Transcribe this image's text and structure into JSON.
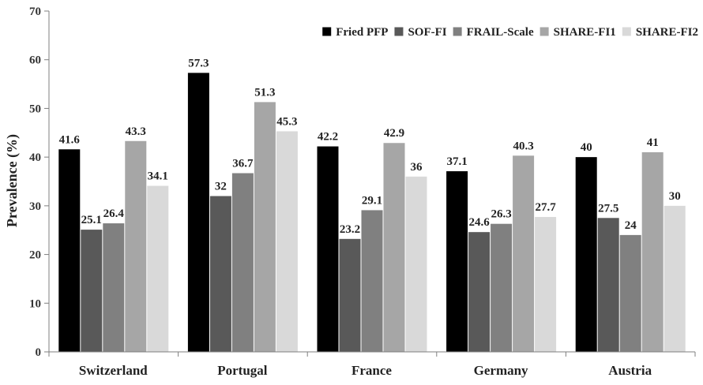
{
  "chart_data": {
    "type": "bar",
    "title": "",
    "xlabel": "",
    "ylabel": "Prevalence (%)",
    "ylim": [
      0,
      70
    ],
    "yticks": [
      0,
      10,
      20,
      30,
      40,
      50,
      60,
      70
    ],
    "grid": false,
    "legend_position": "top-right",
    "categories": [
      "Switzerland",
      "Portugal",
      "France",
      "Germany",
      "Austria"
    ],
    "series": [
      {
        "name": "Fried PFP",
        "color": "#000000",
        "values": [
          41.6,
          57.3,
          42.2,
          37.1,
          40
        ]
      },
      {
        "name": "SOF-FI",
        "color": "#595959",
        "values": [
          25.1,
          32,
          23.2,
          24.6,
          27.5
        ]
      },
      {
        "name": "FRAIL-Scale",
        "color": "#808080",
        "values": [
          26.4,
          36.7,
          29.1,
          26.3,
          24
        ]
      },
      {
        "name": "SHARE-FI1",
        "color": "#a6a6a6",
        "values": [
          43.3,
          51.3,
          42.9,
          40.3,
          41
        ]
      },
      {
        "name": "SHARE-FI2",
        "color": "#d9d9d9",
        "values": [
          34.1,
          45.3,
          36,
          27.7,
          30
        ]
      }
    ],
    "data_labels": [
      [
        "41.6",
        "57.3",
        "42.2",
        "37.1",
        "40"
      ],
      [
        "25.1",
        "32",
        "23.2",
        "24.6",
        "27.5"
      ],
      [
        "26.4",
        "36.7",
        "29.1",
        "26.3",
        "24"
      ],
      [
        "43.3",
        "51.3",
        "42.9",
        "40.3",
        "41"
      ],
      [
        "34.1",
        "45.3",
        "36",
        "27.7",
        "30"
      ]
    ]
  }
}
